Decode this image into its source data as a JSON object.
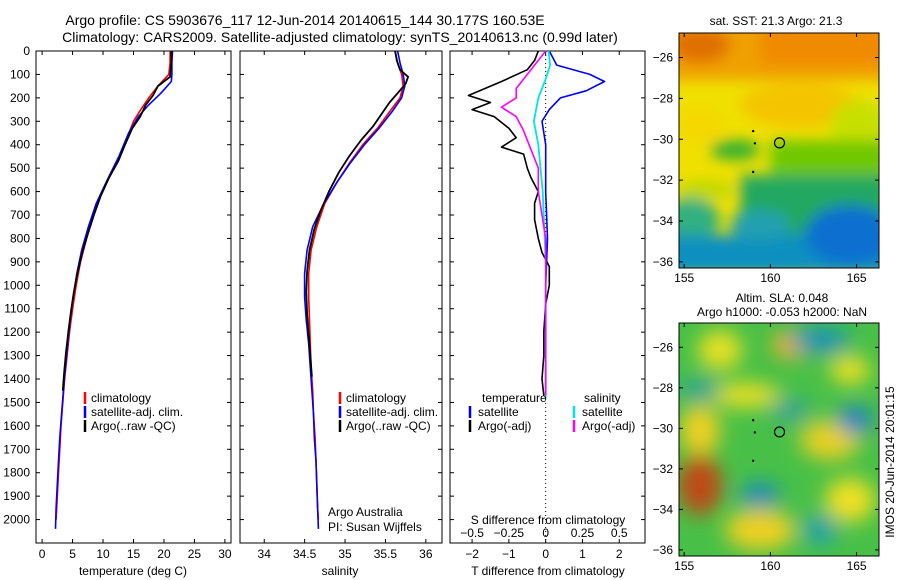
{
  "title_line1": "Argo profile: CS 5903676_117 12-Jun-2014 20140615_144 30.177S 160.53E",
  "title_line2": "Climatology: CARS2009. Satellite-adjusted climatology: synTS_20140613.nc (0.99d later)",
  "footer_vertical": "IMOS 20-Jun-2014 20:01:15",
  "credit_line1": "Argo Australia",
  "credit_line2": "PI: Susan Wijffels",
  "colors": {
    "climatology": "#ff0000",
    "satellite": "#0000ff",
    "argo": "#000000",
    "sal_satellite": "#00e5e5",
    "sal_argo": "#ff00ff"
  },
  "chart_data": [
    {
      "type": "line",
      "xlabel": "temperature (deg C)",
      "ylabel": "",
      "xlim": [
        -1,
        31
      ],
      "ylim": [
        2100,
        0
      ],
      "xticks": [
        0,
        5,
        10,
        15,
        20,
        25,
        30
      ],
      "yticks": [
        0,
        100,
        200,
        300,
        400,
        500,
        600,
        700,
        800,
        900,
        1000,
        1100,
        1200,
        1300,
        1400,
        1500,
        1600,
        1700,
        1800,
        1900,
        2000
      ],
      "legend": [
        "climatology",
        "satellite-adj. clim.",
        "Argo(..raw -QC)"
      ],
      "series": [
        {
          "name": "climatology",
          "color": "#ff0000",
          "points": [
            [
              21.0,
              0
            ],
            [
              21.0,
              50
            ],
            [
              20.8,
              100
            ],
            [
              19.0,
              150
            ],
            [
              17.5,
              200
            ],
            [
              16.2,
              250
            ],
            [
              15.0,
              300
            ],
            [
              13.5,
              400
            ],
            [
              11.8,
              500
            ],
            [
              9.8,
              600
            ],
            [
              8.5,
              700
            ],
            [
              7.3,
              800
            ],
            [
              6.3,
              900
            ],
            [
              5.6,
              1000
            ],
            [
              5.0,
              1100
            ],
            [
              4.5,
              1200
            ],
            [
              4.1,
              1300
            ],
            [
              3.7,
              1400
            ],
            [
              3.4,
              1500
            ],
            [
              3.1,
              1600
            ],
            [
              2.9,
              1700
            ],
            [
              2.7,
              1800
            ],
            [
              2.5,
              1900
            ],
            [
              2.3,
              2000
            ]
          ]
        },
        {
          "name": "satellite-adj. clim.",
          "color": "#0000ff",
          "points": [
            [
              21.4,
              0
            ],
            [
              21.3,
              50
            ],
            [
              21.3,
              100
            ],
            [
              21.2,
              130
            ],
            [
              19.5,
              180
            ],
            [
              17.5,
              230
            ],
            [
              15.8,
              280
            ],
            [
              14.2,
              350
            ],
            [
              12.6,
              450
            ],
            [
              10.7,
              550
            ],
            [
              8.9,
              650
            ],
            [
              7.6,
              750
            ],
            [
              6.5,
              850
            ],
            [
              5.7,
              950
            ],
            [
              5.1,
              1050
            ],
            [
              4.6,
              1150
            ],
            [
              4.2,
              1250
            ],
            [
              3.8,
              1350
            ],
            [
              3.5,
              1450
            ],
            [
              3.2,
              1550
            ],
            [
              2.9,
              1650
            ],
            [
              2.7,
              1750
            ],
            [
              2.5,
              1850
            ],
            [
              2.3,
              1950
            ],
            [
              2.2,
              2040
            ]
          ]
        },
        {
          "name": "Argo(..raw -QC)",
          "color": "#000000",
          "points": [
            [
              21.2,
              0
            ],
            [
              21.2,
              50
            ],
            [
              21.0,
              110
            ],
            [
              19.0,
              150
            ],
            [
              18.2,
              190
            ],
            [
              17.0,
              230
            ],
            [
              16.1,
              280
            ],
            [
              14.8,
              330
            ],
            [
              13.6,
              400
            ],
            [
              12.5,
              470
            ],
            [
              11.0,
              540
            ],
            [
              9.6,
              620
            ],
            [
              8.5,
              700
            ],
            [
              7.5,
              780
            ],
            [
              6.6,
              860
            ],
            [
              5.8,
              950
            ],
            [
              5.2,
              1030
            ],
            [
              4.7,
              1120
            ],
            [
              4.3,
              1200
            ],
            [
              3.9,
              1290
            ],
            [
              3.6,
              1380
            ],
            [
              3.4,
              1450
            ]
          ]
        }
      ]
    },
    {
      "type": "line",
      "xlabel": "salinity",
      "xlim": [
        33.7,
        36.2
      ],
      "ylim": [
        2100,
        0
      ],
      "xticks": [
        34,
        34.5,
        35,
        35.5,
        36
      ],
      "legend": [
        "climatology",
        "satellite-adj. clim.",
        "Argo(..raw -QC)"
      ],
      "series": [
        {
          "name": "climatology",
          "color": "#ff0000",
          "points": [
            [
              35.62,
              0
            ],
            [
              35.65,
              50
            ],
            [
              35.7,
              100
            ],
            [
              35.72,
              150
            ],
            [
              35.68,
              200
            ],
            [
              35.55,
              260
            ],
            [
              35.4,
              330
            ],
            [
              35.22,
              400
            ],
            [
              35.05,
              480
            ],
            [
              34.9,
              560
            ],
            [
              34.75,
              650
            ],
            [
              34.65,
              750
            ],
            [
              34.58,
              850
            ],
            [
              34.55,
              950
            ],
            [
              34.55,
              1050
            ],
            [
              34.56,
              1150
            ],
            [
              34.57,
              1250
            ],
            [
              34.58,
              1350
            ],
            [
              34.6,
              1450
            ],
            [
              34.61,
              1550
            ],
            [
              34.63,
              1650
            ],
            [
              34.64,
              1750
            ],
            [
              34.65,
              1850
            ],
            [
              34.66,
              1950
            ],
            [
              34.67,
              2000
            ]
          ]
        },
        {
          "name": "satellite-adj. clim.",
          "color": "#0000ff",
          "points": [
            [
              35.65,
              0
            ],
            [
              35.68,
              50
            ],
            [
              35.72,
              100
            ],
            [
              35.74,
              150
            ],
            [
              35.7,
              200
            ],
            [
              35.58,
              260
            ],
            [
              35.42,
              330
            ],
            [
              35.24,
              400
            ],
            [
              35.06,
              480
            ],
            [
              34.9,
              560
            ],
            [
              34.74,
              650
            ],
            [
              34.6,
              750
            ],
            [
              34.53,
              850
            ],
            [
              34.5,
              950
            ],
            [
              34.5,
              1050
            ],
            [
              34.52,
              1150
            ],
            [
              34.55,
              1250
            ],
            [
              34.57,
              1350
            ],
            [
              34.59,
              1450
            ],
            [
              34.61,
              1550
            ],
            [
              34.62,
              1650
            ],
            [
              34.64,
              1750
            ],
            [
              34.65,
              1850
            ],
            [
              34.66,
              1950
            ],
            [
              34.67,
              2040
            ]
          ]
        },
        {
          "name": "Argo(..raw -QC)",
          "color": "#000000",
          "points": [
            [
              35.62,
              0
            ],
            [
              35.64,
              40
            ],
            [
              35.68,
              80
            ],
            [
              35.78,
              110
            ],
            [
              35.75,
              140
            ],
            [
              35.65,
              180
            ],
            [
              35.55,
              220
            ],
            [
              35.45,
              270
            ],
            [
              35.35,
              320
            ],
            [
              35.2,
              380
            ],
            [
              35.05,
              450
            ],
            [
              34.92,
              520
            ],
            [
              34.8,
              600
            ],
            [
              34.7,
              680
            ],
            [
              34.62,
              760
            ],
            [
              34.56,
              850
            ],
            [
              34.53,
              940
            ],
            [
              34.52,
              1030
            ],
            [
              34.53,
              1120
            ],
            [
              34.55,
              1210
            ],
            [
              34.57,
              1300
            ],
            [
              34.59,
              1390
            ]
          ]
        }
      ]
    },
    {
      "type": "line",
      "xlabel": "T difference from climatology",
      "xlabel_top": "S difference from climatology",
      "xlim": [
        -2.6,
        2.7
      ],
      "ylim": [
        2100,
        0
      ],
      "xticks": [
        -2,
        -1,
        0,
        1,
        2
      ],
      "xticks_top_labels": [
        "-0.5",
        "-0.25",
        "0",
        "0.25",
        "0.5"
      ],
      "legend_temperature_title": "temperature",
      "legend_salinity_title": "salinity",
      "legend": [
        "satellite",
        "Argo(-adj)",
        "satellite",
        "Argo(-adj)"
      ],
      "series": [
        {
          "name": "temperature satellite",
          "color": "#0000ff",
          "points": [
            [
              0.1,
              0
            ],
            [
              0.2,
              30
            ],
            [
              0.3,
              60
            ],
            [
              1.2,
              100
            ],
            [
              1.6,
              130
            ],
            [
              1.1,
              170
            ],
            [
              0.4,
              200
            ],
            [
              0.1,
              250
            ],
            [
              -0.1,
              300
            ],
            [
              0,
              400
            ],
            [
              0,
              600
            ],
            [
              0.05,
              800
            ],
            [
              0,
              1000
            ],
            [
              0,
              1200
            ],
            [
              0,
              1400
            ],
            [
              0,
              1480
            ]
          ]
        },
        {
          "name": "temperature Argo(-adj)",
          "color": "#000000",
          "points": [
            [
              -0.2,
              0
            ],
            [
              -0.3,
              40
            ],
            [
              -0.5,
              80
            ],
            [
              -1.2,
              130
            ],
            [
              -2.1,
              190
            ],
            [
              -1.5,
              220
            ],
            [
              -2.0,
              250
            ],
            [
              -1.4,
              280
            ],
            [
              -1.0,
              330
            ],
            [
              -0.8,
              370
            ],
            [
              -1.2,
              410
            ],
            [
              -0.6,
              440
            ],
            [
              -0.5,
              500
            ],
            [
              -0.4,
              540
            ],
            [
              -0.2,
              600
            ],
            [
              -0.3,
              650
            ],
            [
              -0.3,
              720
            ],
            [
              -0.2,
              800
            ],
            [
              -0.1,
              860
            ],
            [
              0.1,
              920
            ],
            [
              0.1,
              1000
            ],
            [
              0,
              1080
            ],
            [
              -0.05,
              1200
            ],
            [
              -0.05,
              1300
            ],
            [
              -0.1,
              1400
            ],
            [
              -0.05,
              1470
            ]
          ]
        },
        {
          "name": "salinity satellite",
          "color": "#00e5e5",
          "points": [
            [
              0.02,
              0
            ],
            [
              0.03,
              60
            ],
            [
              0.0,
              120
            ],
            [
              -0.05,
              200
            ],
            [
              -0.08,
              300
            ],
            [
              -0.05,
              400
            ],
            [
              -0.02,
              600
            ],
            [
              0,
              900
            ],
            [
              0,
              1200
            ],
            [
              0,
              1480
            ]
          ]
        },
        {
          "name": "salinity Argo(-adj)",
          "color": "#ff00ff",
          "points": [
            [
              0.0,
              0
            ],
            [
              -0.1,
              80
            ],
            [
              -0.2,
              160
            ],
            [
              -0.2,
              200
            ],
            [
              -0.3,
              240
            ],
            [
              -0.2,
              280
            ],
            [
              -0.15,
              340
            ],
            [
              -0.1,
              420
            ],
            [
              -0.05,
              500
            ],
            [
              -0.05,
              600
            ],
            [
              0,
              800
            ],
            [
              0,
              1000
            ],
            [
              0,
              1200
            ],
            [
              0,
              1400
            ],
            [
              0,
              1470
            ]
          ]
        }
      ]
    },
    {
      "type": "heatmap",
      "title": "sat. SST: 21.3 Argo: 21.3",
      "xlim": [
        154.7,
        166.3
      ],
      "ylim": [
        -36.3,
        -24.8
      ],
      "xticks": [
        155,
        160,
        165
      ],
      "yticks": [
        -26,
        -28,
        -30,
        -32,
        -34,
        -36
      ],
      "marker": {
        "lon": 160.53,
        "lat": -30.177
      }
    },
    {
      "type": "heatmap",
      "title_line1": "Altim. SLA: 0.048",
      "title_line2": "Argo h1000: -0.053 h2000: NaN",
      "xlim": [
        154.7,
        166.3
      ],
      "ylim": [
        -36.3,
        -24.8
      ],
      "xticks": [
        155,
        160,
        165
      ],
      "yticks": [
        -26,
        -28,
        -30,
        -32,
        -34,
        -36
      ],
      "marker": {
        "lon": 160.53,
        "lat": -30.177
      }
    }
  ]
}
